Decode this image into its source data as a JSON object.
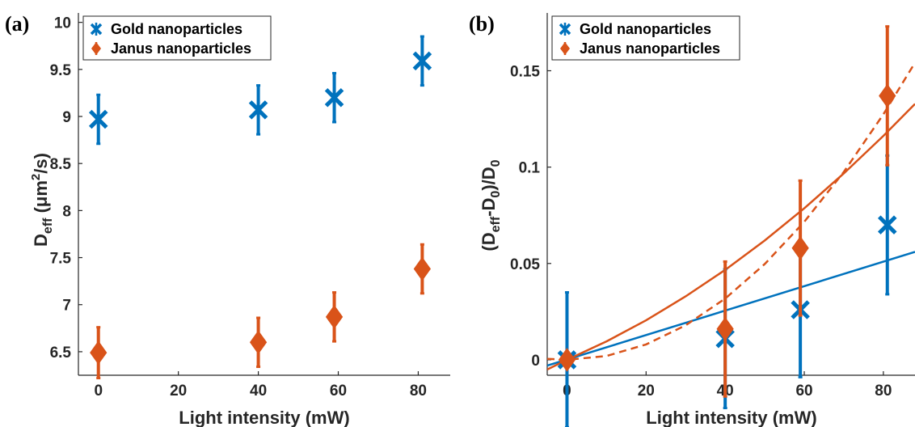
{
  "colors": {
    "gold": "#0072BD",
    "janus": "#D95319",
    "axis": "#262626"
  },
  "chart_data": [
    {
      "type": "scatter",
      "panel_label": "(a)",
      "xlabel": "Light intensity (mW)",
      "ylabel_main": "D",
      "ylabel_sub": "eff",
      "ylabel_unit_pre": " (μm",
      "ylabel_unit_sup": "2",
      "ylabel_unit_post": "/s)",
      "xlim": [
        -5,
        88
      ],
      "ylim": [
        6.25,
        10.1
      ],
      "xticks": [
        0,
        20,
        40,
        60,
        80
      ],
      "xtick_labels": [
        "0",
        "20",
        "40",
        "60",
        "80"
      ],
      "yticks": [
        6.5,
        7,
        7.5,
        8,
        8.5,
        9,
        9.5,
        10
      ],
      "ytick_labels": [
        "6.5",
        "7",
        "7.5",
        "8",
        "8.5",
        "9",
        "9.5",
        "10"
      ],
      "legend_position": "top-left",
      "series": [
        {
          "name": "Gold nanoparticles",
          "marker": "x",
          "color": "#0072BD",
          "x": [
            0,
            40,
            59,
            81
          ],
          "y": [
            8.97,
            9.07,
            9.2,
            9.59
          ],
          "err": [
            0.26,
            0.26,
            0.26,
            0.26
          ]
        },
        {
          "name": "Janus nanoparticles",
          "marker": "diamond",
          "color": "#D95319",
          "x": [
            0,
            40,
            59,
            81
          ],
          "y": [
            6.49,
            6.6,
            6.87,
            7.38
          ],
          "err": [
            0.27,
            0.26,
            0.26,
            0.26
          ]
        }
      ],
      "fit_lines": []
    },
    {
      "type": "scatter",
      "panel_label": "(b)",
      "xlabel": "Light intensity (mW)",
      "ylabel_text_1": "(D",
      "ylabel_sub_1": "eff",
      "ylabel_text_2": "-D",
      "ylabel_sub_2": "0",
      "ylabel_text_3": ")/D",
      "ylabel_sub_3": "0",
      "xlim": [
        -5,
        88
      ],
      "ylim": [
        -0.008,
        0.18
      ],
      "xticks": [
        0,
        20,
        40,
        60,
        80
      ],
      "xtick_labels": [
        "0",
        "20",
        "40",
        "60",
        "80"
      ],
      "yticks": [
        0,
        0.05,
        0.1,
        0.15
      ],
      "ytick_labels": [
        "0",
        "0.05",
        "0.1",
        "0.15"
      ],
      "legend_position": "top-left",
      "series": [
        {
          "name": "Gold nanoparticles",
          "marker": "x",
          "color": "#0072BD",
          "x": [
            0,
            40,
            59,
            81
          ],
          "y": [
            0,
            0.011,
            0.026,
            0.07
          ],
          "err": [
            0.035,
            0.036,
            0.035,
            0.036
          ]
        },
        {
          "name": "Janus nanoparticles",
          "marker": "diamond",
          "color": "#D95319",
          "x": [
            0,
            40,
            59,
            81
          ],
          "y": [
            0,
            0.016,
            0.058,
            0.137
          ],
          "err": [
            0.004,
            0.035,
            0.035,
            0.036
          ]
        }
      ],
      "fit_lines": [
        {
          "color": "#0072BD",
          "style": "solid",
          "x": [
            -5,
            88
          ],
          "y": [
            -0.003,
            0.056
          ]
        },
        {
          "color": "#D95319",
          "style": "solid",
          "x": [
            -5,
            0,
            10,
            20,
            30,
            40,
            50,
            60,
            70,
            80,
            88
          ],
          "y": [
            -0.005,
            0.0,
            0.0096,
            0.0205,
            0.0329,
            0.0467,
            0.0619,
            0.0786,
            0.0967,
            0.1162,
            0.1328
          ]
        },
        {
          "color": "#D95319",
          "style": "dashed",
          "x": [
            -5,
            0,
            10,
            20,
            30,
            40,
            50,
            60,
            70,
            80,
            88
          ],
          "y": [
            0.0005,
            0.0,
            0.002,
            0.008,
            0.0179,
            0.0318,
            0.0497,
            0.0716,
            0.0975,
            0.1274,
            0.1542
          ]
        }
      ]
    }
  ]
}
